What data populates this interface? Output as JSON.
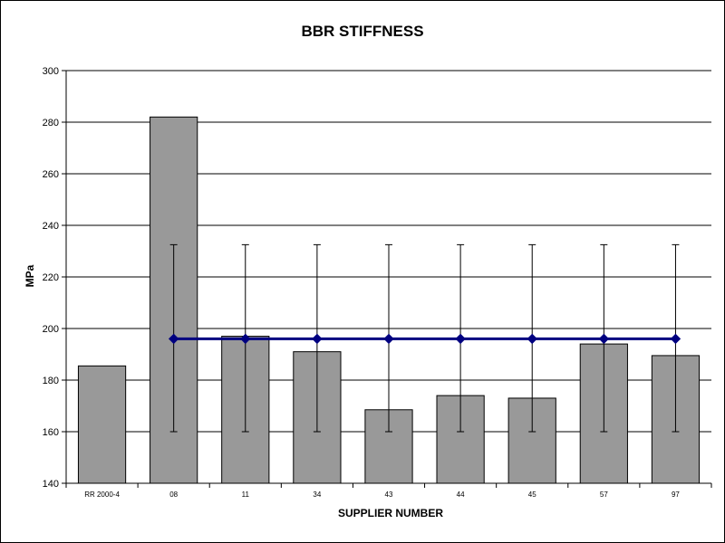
{
  "chart_data": {
    "type": "bar",
    "title": "BBR STIFFNESS",
    "xlabel": "SUPPLIER NUMBER",
    "ylabel": "MPa",
    "ylim": [
      140,
      300
    ],
    "yticks": [
      140,
      160,
      180,
      200,
      220,
      240,
      260,
      280,
      300
    ],
    "categories": [
      "RR 2000-4",
      "08",
      "11",
      "34",
      "43",
      "44",
      "45",
      "57",
      "97"
    ],
    "series": [
      {
        "values": [
          185.5,
          282,
          197,
          191,
          168.5,
          174,
          173,
          194,
          189.5
        ]
      }
    ],
    "reference_line": {
      "value": 196,
      "error_upper": 232.5,
      "error_lower": 160,
      "start_category": "08",
      "end_category": "97"
    },
    "grid": true,
    "legend": "none",
    "colors": {
      "bar_fill": "#999999",
      "bar_stroke": "#000000",
      "line": "#000080",
      "marker": "#000080",
      "error_bar": "#000000",
      "grid": "#000000",
      "background": "#ffffff"
    }
  }
}
